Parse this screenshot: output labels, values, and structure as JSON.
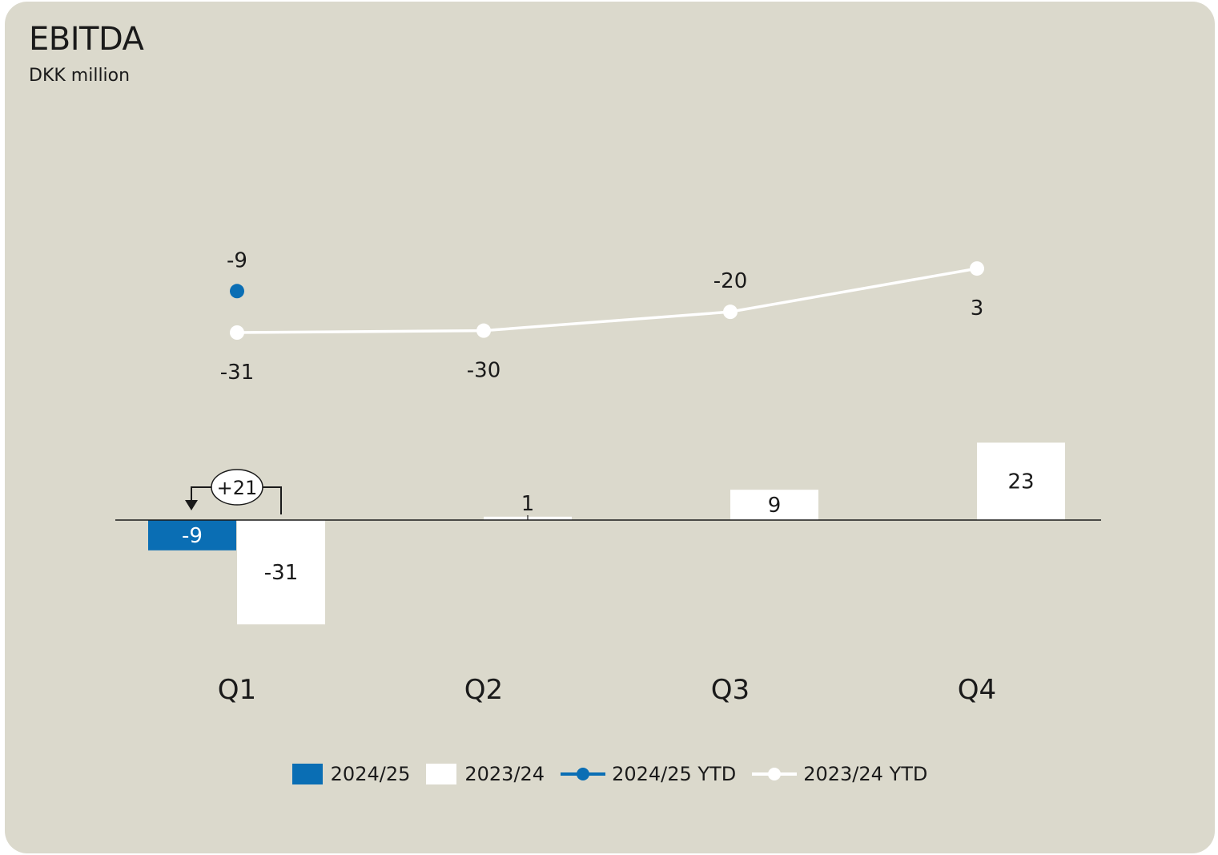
{
  "title": "EBITDA",
  "subtitle": "DKK million",
  "colors": {
    "background": "#dbd9cc",
    "current": "#0a6eb4",
    "prior": "#ffffff",
    "axis": "#1a1a1a"
  },
  "chart_data": {
    "type": "bar",
    "categories": [
      "Q1",
      "Q2",
      "Q3",
      "Q4"
    ],
    "series": [
      {
        "name": "2024/25",
        "kind": "bar",
        "color": "#0a6eb4",
        "values": [
          -9,
          null,
          null,
          null
        ],
        "labels": [
          "-9",
          null,
          null,
          null
        ]
      },
      {
        "name": "2023/24",
        "kind": "bar",
        "color": "#ffffff",
        "values": [
          -31,
          1,
          9,
          23
        ],
        "labels": [
          "-31",
          "1",
          "9",
          "23"
        ]
      },
      {
        "name": "2024/25 YTD",
        "kind": "line",
        "color": "#0a6eb4",
        "values": [
          -9,
          null,
          null,
          null
        ],
        "labels": [
          "-9",
          null,
          null,
          null
        ]
      },
      {
        "name": "2023/24 YTD",
        "kind": "line",
        "color": "#ffffff",
        "values": [
          -31,
          -30,
          -20,
          3
        ],
        "labels": [
          "-31",
          "-30",
          "-20",
          "3"
        ]
      }
    ],
    "annotations": [
      {
        "category": "Q1",
        "text": "+21"
      }
    ],
    "legend": [
      "2024/25",
      "2023/24",
      "2024/25 YTD",
      "2023/24 YTD"
    ],
    "legend_position": "bottom"
  }
}
